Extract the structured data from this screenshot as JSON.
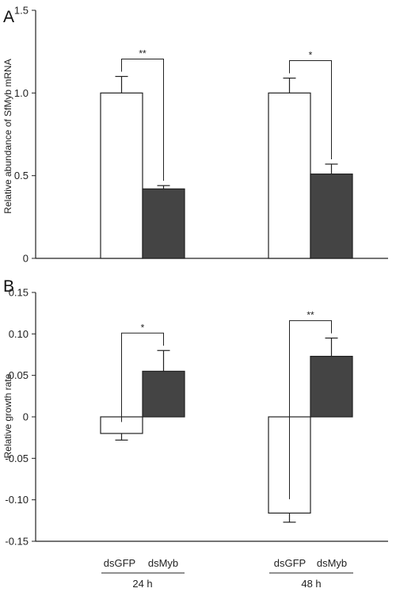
{
  "colors": {
    "control": "#ffffff",
    "treatment": "#444444",
    "line": "#222222"
  },
  "x_axis": {
    "categories": [
      "dsGFP",
      "dsMyb"
    ],
    "groups": [
      "24 h",
      "48 h"
    ]
  },
  "chart_data": [
    {
      "type": "bar",
      "panel": "A",
      "ylabel": "Relative abundance of SfMyb mRNA",
      "ylim": [
        0,
        1.5
      ],
      "yticks": [
        0,
        0.5,
        1.0,
        1.5
      ],
      "ytick_labels": [
        "0",
        "0.5",
        "1.0",
        "1.5"
      ],
      "groups": [
        {
          "label": "24 h",
          "bars": [
            {
              "category": "dsGFP",
              "value": 1.0,
              "error": 0.1
            },
            {
              "category": "dsMyb",
              "value": 0.42,
              "error": 0.02
            }
          ],
          "significance": "**"
        },
        {
          "label": "48 h",
          "bars": [
            {
              "category": "dsGFP",
              "value": 1.0,
              "error": 0.09
            },
            {
              "category": "dsMyb",
              "value": 0.51,
              "error": 0.06
            }
          ],
          "significance": "*"
        }
      ]
    },
    {
      "type": "bar",
      "panel": "B",
      "ylabel": "Relative growth rate",
      "ylim": [
        -0.15,
        0.15
      ],
      "yticks": [
        -0.15,
        -0.1,
        -0.05,
        0,
        0.05,
        0.1,
        0.15
      ],
      "ytick_labels": [
        "-0.15",
        "-0.10",
        "-0.05",
        "0",
        "0.05",
        "0.10",
        "0.15"
      ],
      "groups": [
        {
          "label": "24 h",
          "bars": [
            {
              "category": "dsGFP",
              "value": -0.02,
              "error": 0.008
            },
            {
              "category": "dsMyb",
              "value": 0.055,
              "error": 0.025
            }
          ],
          "significance": "*"
        },
        {
          "label": "48 h",
          "bars": [
            {
              "category": "dsGFP",
              "value": -0.116,
              "error": 0.011
            },
            {
              "category": "dsMyb",
              "value": 0.073,
              "error": 0.022
            }
          ],
          "significance": "**"
        }
      ]
    }
  ]
}
